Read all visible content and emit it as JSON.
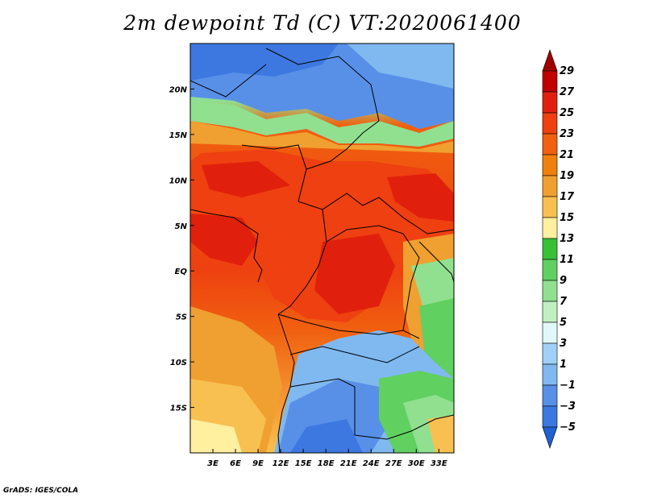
{
  "title": "2m dewpoint Td (C) VT:2020061400",
  "credit": "GrADS: IGES/COLA",
  "map": {
    "variable": "2m dewpoint",
    "units": "C",
    "valid_time": "2020061400",
    "lon_range": [
      0,
      35
    ],
    "lat_range": [
      -20,
      25
    ],
    "lon_ticks": [
      {
        "value": 3,
        "label": "3E"
      },
      {
        "value": 6,
        "label": "6E"
      },
      {
        "value": 9,
        "label": "9E"
      },
      {
        "value": 12,
        "label": "12E"
      },
      {
        "value": 15,
        "label": "15E"
      },
      {
        "value": 18,
        "label": "18E"
      },
      {
        "value": 21,
        "label": "21E"
      },
      {
        "value": 24,
        "label": "24E"
      },
      {
        "value": 27,
        "label": "27E"
      },
      {
        "value": 30,
        "label": "30E"
      },
      {
        "value": 33,
        "label": "33E"
      }
    ],
    "lat_ticks": [
      {
        "value": 20,
        "label": "20N"
      },
      {
        "value": 15,
        "label": "15N"
      },
      {
        "value": 10,
        "label": "10N"
      },
      {
        "value": 5,
        "label": "5N"
      },
      {
        "value": 0,
        "label": "EQ"
      },
      {
        "value": -5,
        "label": "5S"
      },
      {
        "value": -10,
        "label": "10S"
      },
      {
        "value": -15,
        "label": "15S"
      }
    ]
  },
  "colorbar": {
    "levels": [
      {
        "label": "29",
        "value": 29
      },
      {
        "label": "27",
        "value": 27
      },
      {
        "label": "25",
        "value": 25
      },
      {
        "label": "23",
        "value": 23
      },
      {
        "label": "21",
        "value": 21
      },
      {
        "label": "19",
        "value": 19
      },
      {
        "label": "17",
        "value": 17
      },
      {
        "label": "15",
        "value": 15
      },
      {
        "label": "13",
        "value": 13
      },
      {
        "label": "11",
        "value": 11
      },
      {
        "label": "9",
        "value": 9
      },
      {
        "label": "7",
        "value": 7
      },
      {
        "label": "5",
        "value": 5
      },
      {
        "label": "3",
        "value": 3
      },
      {
        "label": "1",
        "value": 1
      },
      {
        "label": "−1",
        "value": -1
      },
      {
        "label": "−3",
        "value": -3
      },
      {
        "label": "−5",
        "value": -5
      }
    ],
    "colors": [
      "#a00000",
      "#c00000",
      "#e0200c",
      "#ee4010",
      "#f06010",
      "#f0800c",
      "#f0a030",
      "#f8c050",
      "#fff0a0",
      "#38c038",
      "#60d060",
      "#90e090",
      "#c0f0c0",
      "#e0f8f8",
      "#a0d0f8",
      "#80b8f0",
      "#5890e8",
      "#3c78e0",
      "#2060d0"
    ]
  }
}
